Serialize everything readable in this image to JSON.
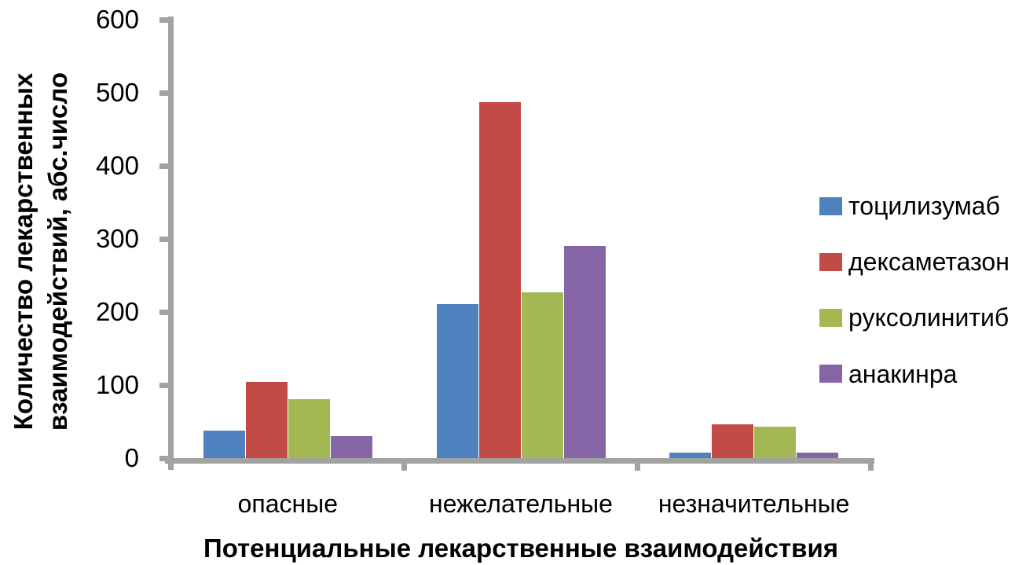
{
  "chart_data": {
    "type": "bar",
    "title": "",
    "categories": [
      "опасные",
      "нежелательные",
      "незначительные"
    ],
    "series": [
      {
        "name": "тоцилизумаб",
        "color": "#5081BF",
        "values": [
          38,
          211,
          7
        ]
      },
      {
        "name": "дексаметазон",
        "color": "#C34B47",
        "values": [
          104,
          487,
          46
        ]
      },
      {
        "name": "руксолинитиб",
        "color": "#A3B752",
        "values": [
          81,
          227,
          43
        ]
      },
      {
        "name": "анакинра",
        "color": "#8565A5",
        "values": [
          30,
          290,
          7
        ]
      }
    ],
    "xlabel": "Потенциальные лекарственные взаимодействия",
    "ylabel": "Количество лекарственных взаимодействий, абс.число",
    "ylabel_lines": [
      "Количество лекарственных",
      "взаимодействий, абс.число"
    ],
    "ylim": [
      0,
      600
    ],
    "yticks": [
      0,
      100,
      200,
      300,
      400,
      500,
      600
    ],
    "grid": false,
    "legend_position": "right",
    "axis_color": "#A2A2A0",
    "text_color": "#000000",
    "background_color": "#FFFFFF"
  }
}
